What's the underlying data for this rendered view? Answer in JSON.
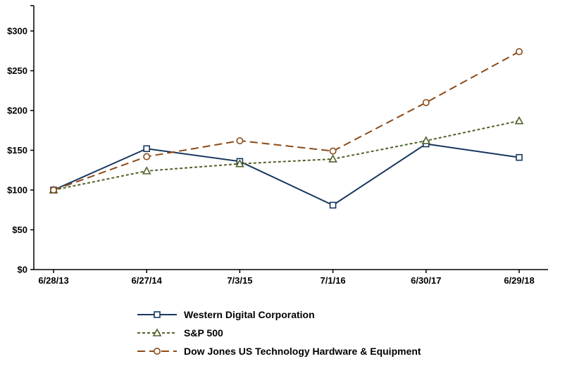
{
  "chart_data": {
    "type": "line",
    "title": "",
    "xlabel": "",
    "ylabel": "",
    "categories": [
      "6/28/13",
      "6/27/14",
      "7/3/15",
      "7/1/16",
      "6/30/17",
      "6/29/18"
    ],
    "ylim": [
      0,
      300
    ],
    "ytick_step": 50,
    "ytick_labels": [
      "$0",
      "$50",
      "$100",
      "$150",
      "$200",
      "$250",
      "$300"
    ],
    "grid": false,
    "legend_position": "bottom",
    "series": [
      {
        "name": "Western Digital Corporation",
        "values": [
          100,
          152,
          136,
          81,
          158,
          141
        ],
        "color": "#17375E",
        "dash": "solid",
        "marker": "square"
      },
      {
        "name": "S&P 500",
        "values": [
          100,
          124,
          133,
          139,
          162,
          187
        ],
        "color": "#4F6228",
        "dash": "short-dash",
        "marker": "triangle"
      },
      {
        "name": "Dow Jones US Technology Hardware & Equipment",
        "values": [
          100,
          142,
          162,
          149,
          210,
          274
        ],
        "color": "#8C4A17",
        "dash": "long-dash",
        "marker": "circle"
      }
    ]
  }
}
